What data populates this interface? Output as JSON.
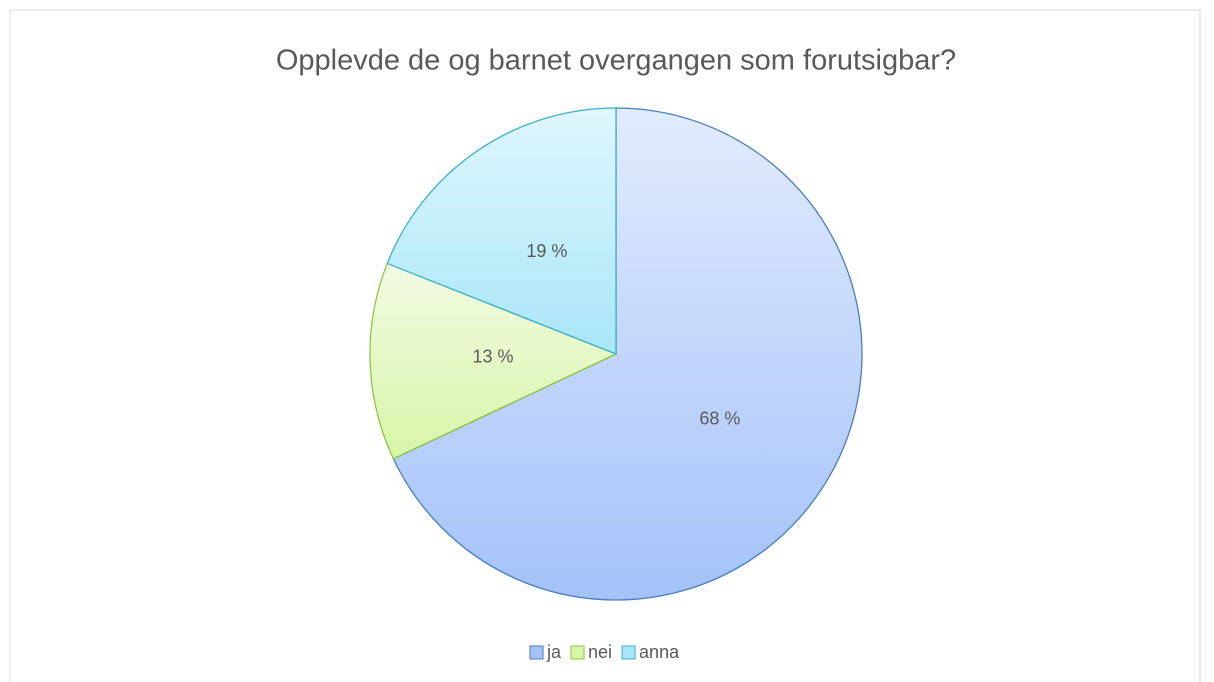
{
  "chart_data": {
    "type": "pie",
    "title": "Opplevde de og barnet overgangen som forutsigbar?",
    "categories": [
      "ja",
      "nei",
      "anna"
    ],
    "values": [
      68,
      13,
      19
    ],
    "value_labels": [
      "68 %",
      "13 %",
      "19 %"
    ],
    "colors": [
      "#a4c2f9",
      "#d8f5a8",
      "#a8e6f7"
    ],
    "legend": "bottom"
  }
}
